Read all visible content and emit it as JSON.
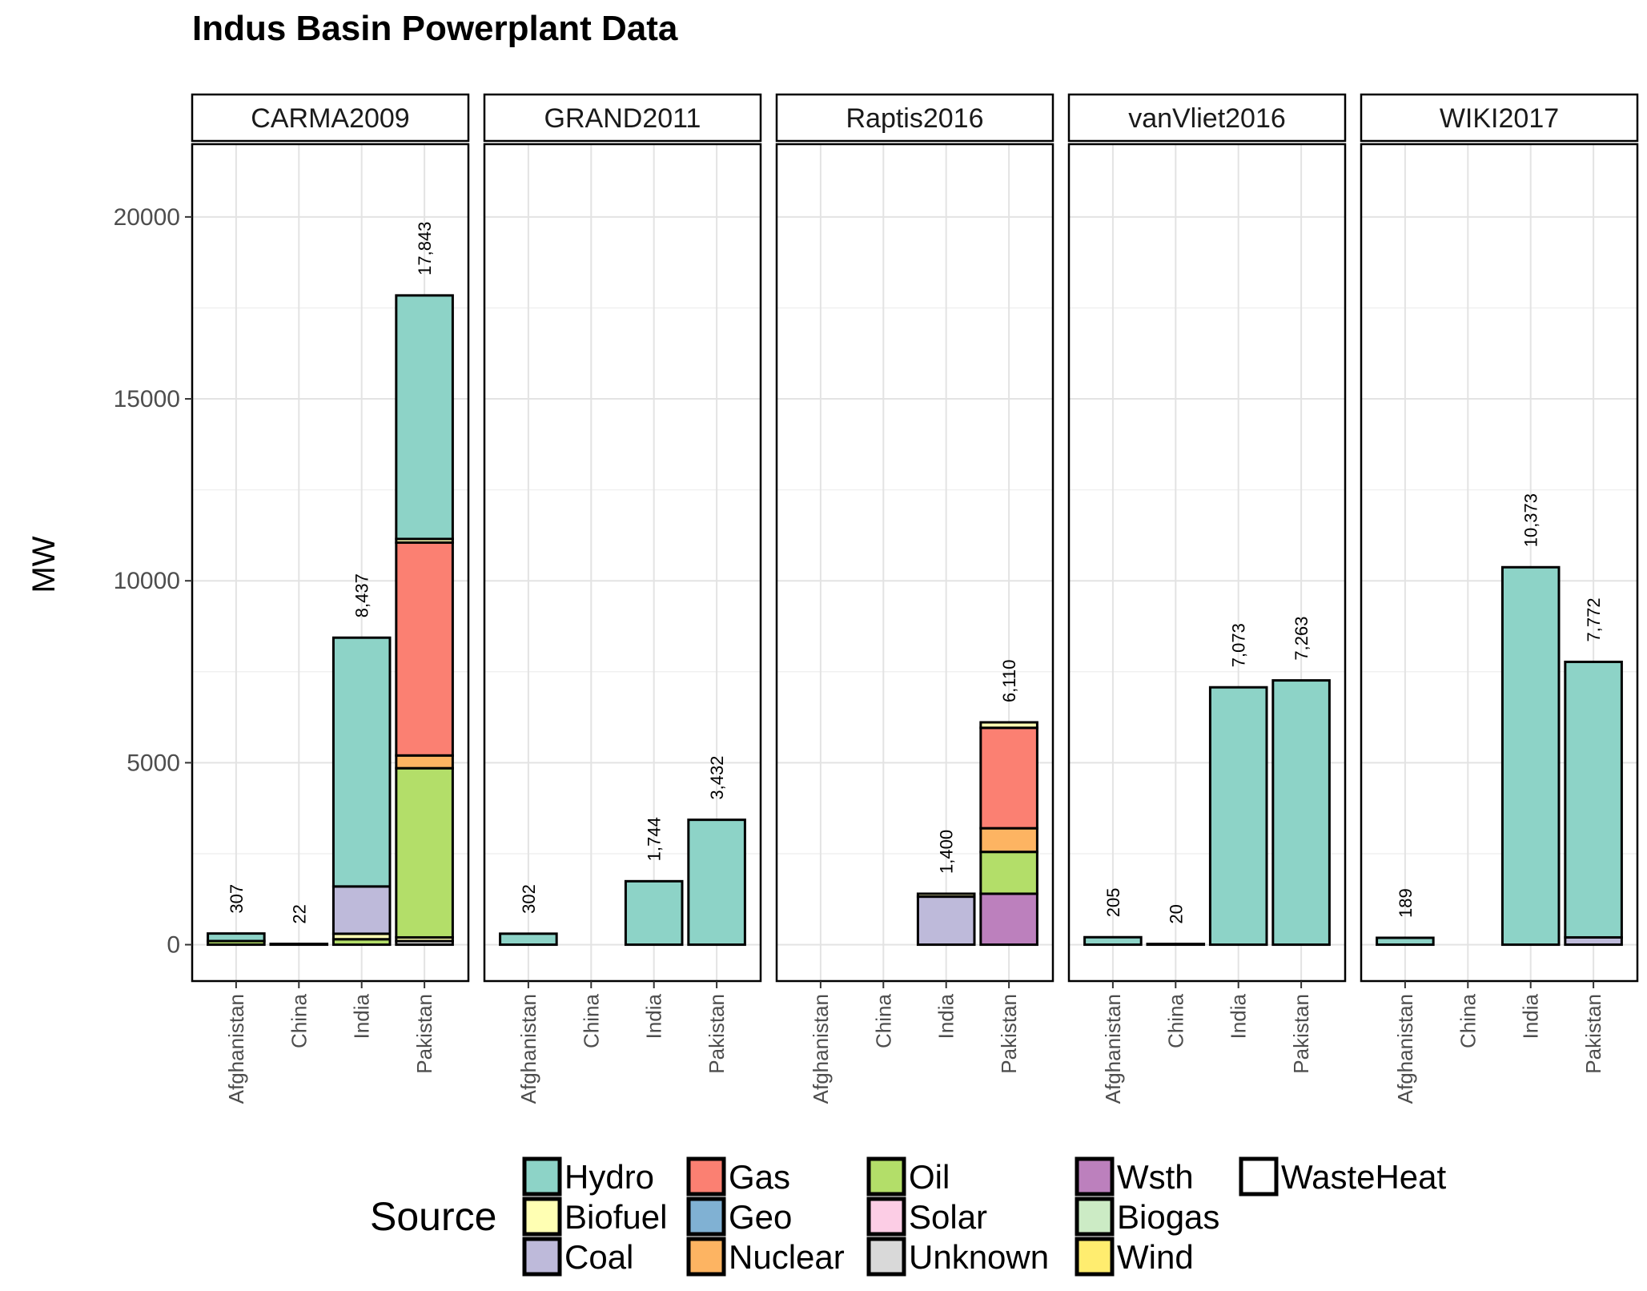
{
  "chart_data": {
    "type": "bar",
    "stacked": true,
    "title": "Indus Basin Powerplant Data",
    "ylabel": "MW",
    "xlabel": "",
    "ylim": [
      -1000,
      22000
    ],
    "yticks": [
      0,
      5000,
      10000,
      15000,
      20000
    ],
    "grid": true,
    "legend_position": "bottom",
    "categories": [
      "Afghanistan",
      "China",
      "India",
      "Pakistan"
    ],
    "legend": {
      "title": "Source",
      "entries": [
        {
          "name": "Hydro",
          "color": "#8dd3c7"
        },
        {
          "name": "Biofuel",
          "color": "#ffffb3"
        },
        {
          "name": "Coal",
          "color": "#bebada"
        },
        {
          "name": "Gas",
          "color": "#fb8072"
        },
        {
          "name": "Geo",
          "color": "#80b1d3"
        },
        {
          "name": "Nuclear",
          "color": "#fdb462"
        },
        {
          "name": "Oil",
          "color": "#b3de69"
        },
        {
          "name": "Solar",
          "color": "#fccde5"
        },
        {
          "name": "Unknown",
          "color": "#d9d9d9"
        },
        {
          "name": "Wsth",
          "color": "#bc80bd"
        },
        {
          "name": "Biogas",
          "color": "#ccebc5"
        },
        {
          "name": "Wind",
          "color": "#ffed6f"
        },
        {
          "name": "WasteHeat",
          "color": "#ffffff"
        }
      ]
    },
    "panels": [
      {
        "name": "CARMA2009",
        "bars": [
          {
            "category": "Afghanistan",
            "total": 307,
            "total_label": "307",
            "segments": [
              {
                "source": "Oil",
                "value": 100
              },
              {
                "source": "Hydro",
                "value": 207
              }
            ]
          },
          {
            "category": "China",
            "total": 22,
            "total_label": "22",
            "segments": [
              {
                "source": "Hydro",
                "value": 22
              }
            ]
          },
          {
            "category": "India",
            "total": 8437,
            "total_label": "8,437",
            "segments": [
              {
                "source": "Oil",
                "value": 150
              },
              {
                "source": "Biofuel",
                "value": 150
              },
              {
                "source": "Coal",
                "value": 1300
              },
              {
                "source": "Hydro",
                "value": 6837
              }
            ]
          },
          {
            "category": "Pakistan",
            "total": 17843,
            "total_label": "17,843",
            "segments": [
              {
                "source": "Unknown",
                "value": 100
              },
              {
                "source": "Biofuel",
                "value": 100
              },
              {
                "source": "Oil",
                "value": 4650
              },
              {
                "source": "Nuclear",
                "value": 350
              },
              {
                "source": "Gas",
                "value": 5850
              },
              {
                "source": "Biofuel",
                "value": 100
              },
              {
                "source": "Hydro",
                "value": 6693
              }
            ]
          }
        ]
      },
      {
        "name": "GRAND2011",
        "bars": [
          {
            "category": "Afghanistan",
            "total": 302,
            "total_label": "302",
            "segments": [
              {
                "source": "Hydro",
                "value": 302
              }
            ]
          },
          {
            "category": "India",
            "total": 1744,
            "total_label": "1,744",
            "segments": [
              {
                "source": "Hydro",
                "value": 1744
              }
            ]
          },
          {
            "category": "Pakistan",
            "total": 3432,
            "total_label": "3,432",
            "segments": [
              {
                "source": "Hydro",
                "value": 3432
              }
            ]
          }
        ]
      },
      {
        "name": "Raptis2016",
        "bars": [
          {
            "category": "India",
            "total": 1400,
            "total_label": "1,400",
            "segments": [
              {
                "source": "Coal",
                "value": 1320
              },
              {
                "source": "Biofuel",
                "value": 80
              }
            ]
          },
          {
            "category": "Pakistan",
            "total": 6110,
            "total_label": "6,110",
            "segments": [
              {
                "source": "Wsth",
                "value": 1400
              },
              {
                "source": "Oil",
                "value": 1150
              },
              {
                "source": "Nuclear",
                "value": 650
              },
              {
                "source": "Gas",
                "value": 2760
              },
              {
                "source": "Biofuel",
                "value": 150
              }
            ]
          }
        ]
      },
      {
        "name": "vanVliet2016",
        "bars": [
          {
            "category": "Afghanistan",
            "total": 205,
            "total_label": "205",
            "segments": [
              {
                "source": "Hydro",
                "value": 205
              }
            ]
          },
          {
            "category": "China",
            "total": 20,
            "total_label": "20",
            "segments": [
              {
                "source": "Hydro",
                "value": 20
              }
            ]
          },
          {
            "category": "India",
            "total": 7073,
            "total_label": "7,073",
            "segments": [
              {
                "source": "Hydro",
                "value": 7073
              }
            ]
          },
          {
            "category": "Pakistan",
            "total": 7263,
            "total_label": "7,263",
            "segments": [
              {
                "source": "Hydro",
                "value": 7263
              }
            ]
          }
        ]
      },
      {
        "name": "WIKI2017",
        "bars": [
          {
            "category": "Afghanistan",
            "total": 189,
            "total_label": "189",
            "segments": [
              {
                "source": "Hydro",
                "value": 189
              }
            ]
          },
          {
            "category": "India",
            "total": 10373,
            "total_label": "10,373",
            "segments": [
              {
                "source": "Hydro",
                "value": 10373
              }
            ]
          },
          {
            "category": "Pakistan",
            "total": 7772,
            "total_label": "7,772",
            "segments": [
              {
                "source": "Coal",
                "value": 200
              },
              {
                "source": "Hydro",
                "value": 7572
              }
            ]
          }
        ]
      }
    ]
  }
}
